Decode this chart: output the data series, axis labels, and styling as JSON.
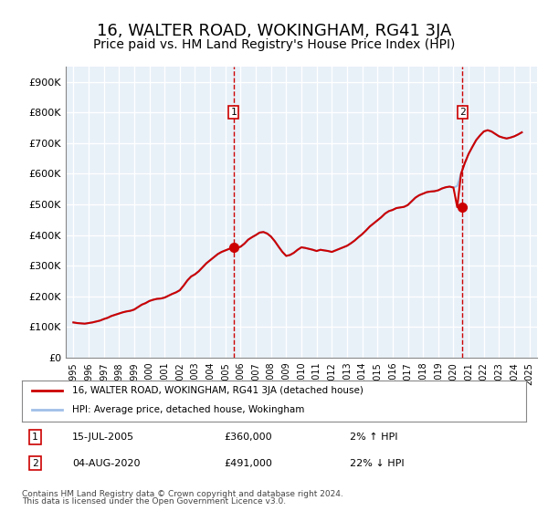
{
  "title": "16, WALTER ROAD, WOKINGHAM, RG41 3JA",
  "subtitle": "Price paid vs. HM Land Registry's House Price Index (HPI)",
  "title_fontsize": 13,
  "subtitle_fontsize": 10,
  "ylabel_ticks": [
    "£0",
    "£100K",
    "£200K",
    "£300K",
    "£400K",
    "£500K",
    "£600K",
    "£700K",
    "£800K",
    "£900K"
  ],
  "ytick_values": [
    0,
    100000,
    200000,
    300000,
    400000,
    500000,
    600000,
    700000,
    800000,
    900000
  ],
  "ylim": [
    0,
    950000
  ],
  "xlim_start": 1994.5,
  "xlim_end": 2025.5,
  "background_color": "#e8f0f8",
  "plot_bg_color": "#e8f0f8",
  "grid_color": "#ffffff",
  "line_color_hpi": "#a0c0e8",
  "line_color_price": "#cc0000",
  "marker_color": "#cc0000",
  "vline_color": "#cc0000",
  "sale1_year": 2005.54,
  "sale1_price": 360000,
  "sale1_label": "15-JUL-2005",
  "sale1_amount": "£360,000",
  "sale1_hpi": "2% ↑ HPI",
  "sale2_year": 2020.59,
  "sale2_price": 491000,
  "sale2_label": "04-AUG-2020",
  "sale2_amount": "£491,000",
  "sale2_hpi": "22% ↓ HPI",
  "legend_line1": "16, WALTER ROAD, WOKINGHAM, RG41 3JA (detached house)",
  "legend_line2": "HPI: Average price, detached house, Wokingham",
  "footer1": "Contains HM Land Registry data © Crown copyright and database right 2024.",
  "footer2": "This data is licensed under the Open Government Licence v3.0.",
  "hpi_data_x": [
    1995.0,
    1995.25,
    1995.5,
    1995.75,
    1996.0,
    1996.25,
    1996.5,
    1996.75,
    1997.0,
    1997.25,
    1997.5,
    1997.75,
    1998.0,
    1998.25,
    1998.5,
    1998.75,
    1999.0,
    1999.25,
    1999.5,
    1999.75,
    2000.0,
    2000.25,
    2000.5,
    2000.75,
    2001.0,
    2001.25,
    2001.5,
    2001.75,
    2002.0,
    2002.25,
    2002.5,
    2002.75,
    2003.0,
    2003.25,
    2003.5,
    2003.75,
    2004.0,
    2004.25,
    2004.5,
    2004.75,
    2005.0,
    2005.25,
    2005.5,
    2005.75,
    2006.0,
    2006.25,
    2006.5,
    2006.75,
    2007.0,
    2007.25,
    2007.5,
    2007.75,
    2008.0,
    2008.25,
    2008.5,
    2008.75,
    2009.0,
    2009.25,
    2009.5,
    2009.75,
    2010.0,
    2010.25,
    2010.5,
    2010.75,
    2011.0,
    2011.25,
    2011.5,
    2011.75,
    2012.0,
    2012.25,
    2012.5,
    2012.75,
    2013.0,
    2013.25,
    2013.5,
    2013.75,
    2014.0,
    2014.25,
    2014.5,
    2014.75,
    2015.0,
    2015.25,
    2015.5,
    2015.75,
    2016.0,
    2016.25,
    2016.5,
    2016.75,
    2017.0,
    2017.25,
    2017.5,
    2017.75,
    2018.0,
    2018.25,
    2018.5,
    2018.75,
    2019.0,
    2019.25,
    2019.5,
    2019.75,
    2020.0,
    2020.25,
    2020.5,
    2020.75,
    2021.0,
    2021.25,
    2021.5,
    2021.75,
    2022.0,
    2022.25,
    2022.5,
    2022.75,
    2023.0,
    2023.25,
    2023.5,
    2023.75,
    2024.0,
    2024.25,
    2024.5
  ],
  "hpi_data_y": [
    115000,
    113000,
    112000,
    111000,
    113000,
    115000,
    118000,
    121000,
    126000,
    130000,
    136000,
    140000,
    144000,
    148000,
    151000,
    153000,
    157000,
    165000,
    173000,
    178000,
    185000,
    189000,
    192000,
    193000,
    196000,
    202000,
    208000,
    213000,
    220000,
    235000,
    252000,
    265000,
    272000,
    282000,
    295000,
    308000,
    318000,
    328000,
    338000,
    345000,
    350000,
    355000,
    353000,
    358000,
    362000,
    372000,
    385000,
    393000,
    400000,
    408000,
    410000,
    405000,
    395000,
    380000,
    362000,
    345000,
    332000,
    335000,
    342000,
    352000,
    360000,
    358000,
    355000,
    352000,
    348000,
    352000,
    350000,
    348000,
    345000,
    350000,
    355000,
    360000,
    365000,
    373000,
    382000,
    393000,
    403000,
    415000,
    428000,
    438000,
    448000,
    458000,
    470000,
    478000,
    482000,
    488000,
    490000,
    492000,
    498000,
    510000,
    522000,
    530000,
    535000,
    540000,
    542000,
    543000,
    546000,
    552000,
    556000,
    558000,
    555000,
    560000,
    600000,
    635000,
    665000,
    688000,
    710000,
    725000,
    738000,
    742000,
    738000,
    730000,
    722000,
    718000,
    715000,
    718000,
    722000,
    728000,
    735000
  ],
  "price_data_x": [
    1995.0,
    1995.25,
    1995.5,
    1995.75,
    1996.0,
    1996.25,
    1996.5,
    1996.75,
    1997.0,
    1997.25,
    1997.5,
    1997.75,
    1998.0,
    1998.25,
    1998.5,
    1998.75,
    1999.0,
    1999.25,
    1999.5,
    1999.75,
    2000.0,
    2000.25,
    2000.5,
    2000.75,
    2001.0,
    2001.25,
    2001.5,
    2001.75,
    2002.0,
    2002.25,
    2002.5,
    2002.75,
    2003.0,
    2003.25,
    2003.5,
    2003.75,
    2004.0,
    2004.25,
    2004.5,
    2004.75,
    2005.0,
    2005.25,
    2005.5,
    2005.75,
    2006.0,
    2006.25,
    2006.5,
    2006.75,
    2007.0,
    2007.25,
    2007.5,
    2007.75,
    2008.0,
    2008.25,
    2008.5,
    2008.75,
    2009.0,
    2009.25,
    2009.5,
    2009.75,
    2010.0,
    2010.25,
    2010.5,
    2010.75,
    2011.0,
    2011.25,
    2011.5,
    2011.75,
    2012.0,
    2012.25,
    2012.5,
    2012.75,
    2013.0,
    2013.25,
    2013.5,
    2013.75,
    2014.0,
    2014.25,
    2014.5,
    2014.75,
    2015.0,
    2015.25,
    2015.5,
    2015.75,
    2016.0,
    2016.25,
    2016.5,
    2016.75,
    2017.0,
    2017.25,
    2017.5,
    2017.75,
    2018.0,
    2018.25,
    2018.5,
    2018.75,
    2019.0,
    2019.25,
    2019.5,
    2019.75,
    2020.0,
    2020.25,
    2020.5,
    2020.75,
    2021.0,
    2021.25,
    2021.5,
    2021.75,
    2022.0,
    2022.25,
    2022.5,
    2022.75,
    2023.0,
    2023.25,
    2023.5,
    2023.75,
    2024.0,
    2024.25,
    2024.5
  ],
  "price_data_y": [
    115000,
    113000,
    112000,
    111000,
    113000,
    115000,
    118000,
    121000,
    126000,
    130000,
    136000,
    140000,
    144000,
    148000,
    151000,
    153000,
    157000,
    165000,
    173000,
    178000,
    185000,
    189000,
    192000,
    193000,
    196000,
    202000,
    208000,
    213000,
    220000,
    235000,
    252000,
    265000,
    272000,
    282000,
    295000,
    308000,
    318000,
    328000,
    338000,
    345000,
    350000,
    355000,
    360000,
    358000,
    362000,
    372000,
    385000,
    393000,
    400000,
    408000,
    410000,
    405000,
    395000,
    380000,
    362000,
    345000,
    332000,
    335000,
    342000,
    352000,
    360000,
    358000,
    355000,
    352000,
    348000,
    352000,
    350000,
    348000,
    345000,
    350000,
    355000,
    360000,
    365000,
    373000,
    382000,
    393000,
    403000,
    415000,
    428000,
    438000,
    448000,
    458000,
    470000,
    478000,
    482000,
    488000,
    490000,
    492000,
    498000,
    510000,
    522000,
    530000,
    535000,
    540000,
    542000,
    543000,
    546000,
    552000,
    556000,
    558000,
    555000,
    491000,
    600000,
    635000,
    665000,
    688000,
    710000,
    725000,
    738000,
    742000,
    738000,
    730000,
    722000,
    718000,
    715000,
    718000,
    722000,
    728000,
    735000
  ]
}
